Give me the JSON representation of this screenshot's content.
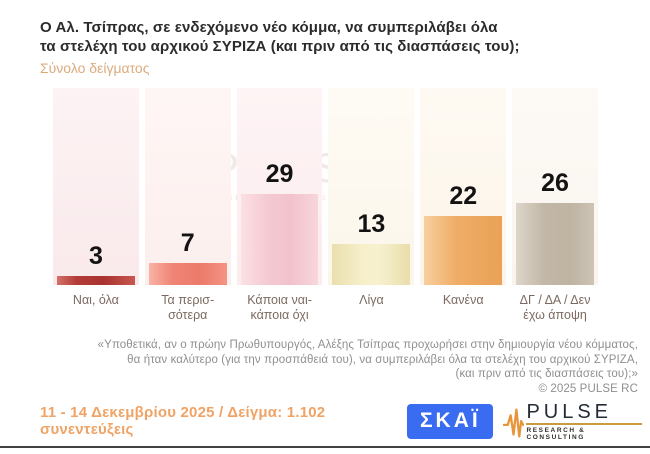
{
  "header": {
    "title_line1": "Ο Αλ. Τσίπρας, σε ενδεχόμενο νέο κόμμα, να συμπεριλάβει όλα",
    "title_line2": "τα στελέχη του αρχικού ΣΥΡΙΖΑ (και πριν από τις διασπάσεις του);",
    "subtitle": "Σύνολο δείγματος"
  },
  "chart_data": {
    "type": "bar",
    "title": "Ο Αλ. Τσίπρας, σε ενδεχόμενο νέο κόμμα, να συμπεριλάβει όλα τα στελέχη του αρχικού ΣΥΡΙΖΑ (και πριν από τις διασπάσεις του);",
    "subtitle": "Σύνολο δείγματος",
    "categories": [
      "Ναι, όλα",
      "Τα περισσότερα",
      "Κάποια ναι- κάποια όχι",
      "Λίγα",
      "Κανένα",
      "ΔΓ / ΔΑ / Δεν έχω άποψη"
    ],
    "display_labels": [
      [
        "Ναι, όλα"
      ],
      [
        "Τα περισ-",
        "σότερα"
      ],
      [
        "Κάποια ναι-",
        "κάποια όχι"
      ],
      [
        "Λίγα"
      ],
      [
        "Κανένα"
      ],
      [
        "ΔΓ / ΔΑ / Δεν",
        "έχω άποψη"
      ]
    ],
    "values": [
      3,
      7,
      29,
      13,
      22,
      26
    ],
    "unit": "%",
    "ylim": [
      0,
      31
    ],
    "data_labels": true,
    "legend": false,
    "grid": false,
    "bar_colors": [
      "#a93330",
      "#ee7e6d",
      "#f3c4cd",
      "#f3ebc2",
      "#eda962",
      "#c2b7a6"
    ],
    "background_column_tints": [
      "#f9e9eb",
      "#fcefed",
      "#fbecee",
      "#fcf6ea",
      "#fcf4e8",
      "#f9f4ed"
    ]
  },
  "watermark": {
    "name": "PULSE",
    "tagline": "RESEARCH & CONSULTING"
  },
  "footnote": {
    "line1": "«Υποθετικά, αν ο πρώην Πρωθυπουργός, Αλέξης Τσίπρας προχωρήσει στην δημιουργία νέου κόμματος,",
    "line2": "θα ήταν καλύτερο (για την προσπάθειά του), να συμπεριλάβει όλα τα στελέχη του αρχικού ΣΥΡΙΖΑ,",
    "line3": "(και πριν από τις διασπάσεις του);»",
    "copyright": "©  2025  PULSE RC"
  },
  "footer": {
    "survey_info": "11 - 14 Δεκεμβρίου 2025  /  Δείγμα:  1.102 συνεντεύξεις",
    "skai_label": "ΣΚΑΪ",
    "pulse_label": "PULSE",
    "pulse_tagline": "RESEARCH & CONSULTING",
    "skai_color": "#3a6cf2",
    "accent_orange": "#efa365",
    "gold": "#c89b3c"
  }
}
